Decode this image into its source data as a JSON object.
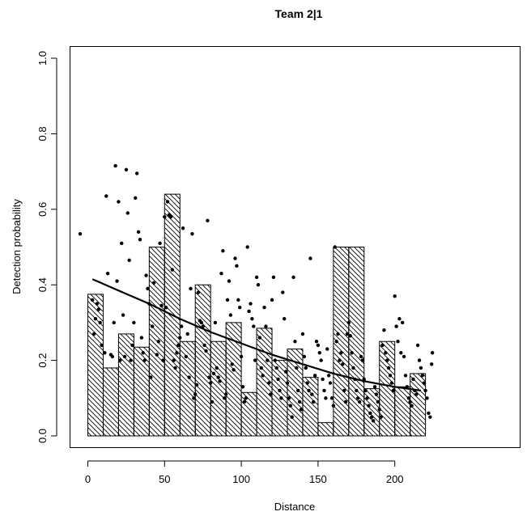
{
  "chart_data": {
    "type": "bar",
    "title": "Team 2|1",
    "xlabel": "Distance",
    "ylabel": "Detection probability",
    "xlim": [
      -5,
      225
    ],
    "ylim": [
      0,
      1.0
    ],
    "x_ticks": [
      0,
      50,
      100,
      150,
      200
    ],
    "y_ticks": [
      0.0,
      0.2,
      0.4,
      0.6,
      0.8,
      1.0
    ],
    "x_tick_labels": [
      "0",
      "50",
      "100",
      "150",
      "200"
    ],
    "y_tick_labels": [
      "0.0",
      "0.2",
      "0.4",
      "0.6",
      "0.8",
      "1.0"
    ],
    "grid": false,
    "bin_width": 10,
    "bins": [
      {
        "start": 0,
        "value": 0.375
      },
      {
        "start": 10,
        "value": 0.18
      },
      {
        "start": 20,
        "value": 0.27
      },
      {
        "start": 30,
        "value": 0.235
      },
      {
        "start": 40,
        "value": 0.5
      },
      {
        "start": 50,
        "value": 0.64
      },
      {
        "start": 60,
        "value": 0.25
      },
      {
        "start": 70,
        "value": 0.4
      },
      {
        "start": 80,
        "value": 0.25
      },
      {
        "start": 90,
        "value": 0.3
      },
      {
        "start": 100,
        "value": 0.115
      },
      {
        "start": 110,
        "value": 0.285
      },
      {
        "start": 120,
        "value": 0.2
      },
      {
        "start": 130,
        "value": 0.23
      },
      {
        "start": 140,
        "value": 0.155
      },
      {
        "start": 150,
        "value": 0.035
      },
      {
        "start": 160,
        "value": 0.5
      },
      {
        "start": 170,
        "value": 0.5
      },
      {
        "start": 180,
        "value": 0.125
      },
      {
        "start": 190,
        "value": 0.25
      },
      {
        "start": 200,
        "value": 0.13
      },
      {
        "start": 210,
        "value": 0.165
      }
    ],
    "fitted_line": {
      "x": [
        3,
        20,
        40,
        60,
        80,
        100,
        120,
        140,
        160,
        180,
        200,
        217
      ],
      "y": [
        0.415,
        0.385,
        0.35,
        0.31,
        0.275,
        0.245,
        0.215,
        0.19,
        0.165,
        0.145,
        0.13,
        0.12
      ]
    },
    "points": [
      [
        -5,
        0.535
      ],
      [
        3,
        0.36
      ],
      [
        4,
        0.27
      ],
      [
        5,
        0.31
      ],
      [
        6,
        0.35
      ],
      [
        7,
        0.335
      ],
      [
        8,
        0.3
      ],
      [
        9,
        0.24
      ],
      [
        11,
        0.22
      ],
      [
        12,
        0.635
      ],
      [
        13,
        0.43
      ],
      [
        15,
        0.215
      ],
      [
        16,
        0.21
      ],
      [
        17,
        0.3
      ],
      [
        18,
        0.715
      ],
      [
        19,
        0.41
      ],
      [
        20,
        0.62
      ],
      [
        21,
        0.2
      ],
      [
        22,
        0.51
      ],
      [
        23,
        0.32
      ],
      [
        24,
        0.21
      ],
      [
        25,
        0.705
      ],
      [
        26,
        0.59
      ],
      [
        27,
        0.465
      ],
      [
        28,
        0.2
      ],
      [
        29,
        0.24
      ],
      [
        30,
        0.3
      ],
      [
        31,
        0.63
      ],
      [
        32,
        0.695
      ],
      [
        33,
        0.54
      ],
      [
        34,
        0.52
      ],
      [
        35,
        0.26
      ],
      [
        36,
        0.22
      ],
      [
        37,
        0.2
      ],
      [
        38,
        0.425
      ],
      [
        39,
        0.39
      ],
      [
        40,
        0.35
      ],
      [
        41,
        0.155
      ],
      [
        42,
        0.29
      ],
      [
        43,
        0.405
      ],
      [
        45,
        0.215
      ],
      [
        46,
        0.25
      ],
      [
        47,
        0.51
      ],
      [
        48,
        0.345
      ],
      [
        49,
        0.2
      ],
      [
        50,
        0.58
      ],
      [
        51,
        0.34
      ],
      [
        52,
        0.62
      ],
      [
        53,
        0.585
      ],
      [
        54,
        0.58
      ],
      [
        55,
        0.44
      ],
      [
        56,
        0.2
      ],
      [
        57,
        0.18
      ],
      [
        58,
        0.22
      ],
      [
        59,
        0.24
      ],
      [
        60,
        0.26
      ],
      [
        61,
        0.29
      ],
      [
        62,
        0.55
      ],
      [
        64,
        0.21
      ],
      [
        65,
        0.27
      ],
      [
        66,
        0.155
      ],
      [
        67,
        0.39
      ],
      [
        68,
        0.535
      ],
      [
        69,
        0.1
      ],
      [
        70,
        0.11
      ],
      [
        71,
        0.135
      ],
      [
        72,
        0.38
      ],
      [
        73,
        0.305
      ],
      [
        74,
        0.3
      ],
      [
        75,
        0.29
      ],
      [
        76,
        0.24
      ],
      [
        77,
        0.225
      ],
      [
        78,
        0.57
      ],
      [
        79,
        0.155
      ],
      [
        80,
        0.14
      ],
      [
        81,
        0.09
      ],
      [
        82,
        0.165
      ],
      [
        83,
        0.3
      ],
      [
        84,
        0.18
      ],
      [
        85,
        0.155
      ],
      [
        86,
        0.145
      ],
      [
        87,
        0.43
      ],
      [
        88,
        0.49
      ],
      [
        89,
        0.1
      ],
      [
        90,
        0.11
      ],
      [
        91,
        0.36
      ],
      [
        92,
        0.41
      ],
      [
        93,
        0.32
      ],
      [
        94,
        0.19
      ],
      [
        95,
        0.175
      ],
      [
        96,
        0.47
      ],
      [
        97,
        0.45
      ],
      [
        98,
        0.36
      ],
      [
        99,
        0.34
      ],
      [
        100,
        0.21
      ],
      [
        101,
        0.13
      ],
      [
        102,
        0.09
      ],
      [
        103,
        0.1
      ],
      [
        104,
        0.5
      ],
      [
        105,
        0.33
      ],
      [
        106,
        0.35
      ],
      [
        107,
        0.31
      ],
      [
        108,
        0.29
      ],
      [
        109,
        0.2
      ],
      [
        110,
        0.42
      ],
      [
        111,
        0.4
      ],
      [
        112,
        0.26
      ],
      [
        113,
        0.18
      ],
      [
        114,
        0.16
      ],
      [
        115,
        0.34
      ],
      [
        116,
        0.29
      ],
      [
        117,
        0.2
      ],
      [
        118,
        0.14
      ],
      [
        119,
        0.11
      ],
      [
        120,
        0.36
      ],
      [
        121,
        0.42
      ],
      [
        122,
        0.2
      ],
      [
        123,
        0.18
      ],
      [
        124,
        0.15
      ],
      [
        125,
        0.12
      ],
      [
        126,
        0.1
      ],
      [
        127,
        0.38
      ],
      [
        128,
        0.31
      ],
      [
        129,
        0.17
      ],
      [
        130,
        0.14
      ],
      [
        131,
        0.1
      ],
      [
        132,
        0.08
      ],
      [
        133,
        0.05
      ],
      [
        134,
        0.42
      ],
      [
        135,
        0.25
      ],
      [
        136,
        0.18
      ],
      [
        137,
        0.12
      ],
      [
        138,
        0.09
      ],
      [
        139,
        0.07
      ],
      [
        140,
        0.27
      ],
      [
        141,
        0.21
      ],
      [
        142,
        0.18
      ],
      [
        143,
        0.14
      ],
      [
        144,
        0.12
      ],
      [
        145,
        0.47
      ],
      [
        146,
        0.11
      ],
      [
        147,
        0.09
      ],
      [
        148,
        0.16
      ],
      [
        149,
        0.25
      ],
      [
        150,
        0.24
      ],
      [
        151,
        0.22
      ],
      [
        152,
        0.2
      ],
      [
        153,
        0.15
      ],
      [
        154,
        0.12
      ],
      [
        155,
        0.1
      ],
      [
        156,
        0.23
      ],
      [
        157,
        0.16
      ],
      [
        158,
        0.14
      ],
      [
        159,
        0.1
      ],
      [
        160,
        0.08
      ],
      [
        161,
        0.5
      ],
      [
        162,
        0.25
      ],
      [
        163,
        0.27
      ],
      [
        164,
        0.2
      ],
      [
        165,
        0.22
      ],
      [
        166,
        0.19
      ],
      [
        167,
        0.12
      ],
      [
        168,
        0.09
      ],
      [
        169,
        0.27
      ],
      [
        170,
        0.3
      ],
      [
        171,
        0.265
      ],
      [
        172,
        0.22
      ],
      [
        173,
        0.18
      ],
      [
        174,
        0.15
      ],
      [
        175,
        0.12
      ],
      [
        176,
        0.1
      ],
      [
        177,
        0.09
      ],
      [
        178,
        0.21
      ],
      [
        179,
        0.2
      ],
      [
        180,
        0.15
      ],
      [
        181,
        0.12
      ],
      [
        182,
        0.1
      ],
      [
        183,
        0.08
      ],
      [
        184,
        0.06
      ],
      [
        185,
        0.05
      ],
      [
        186,
        0.04
      ],
      [
        187,
        0.13
      ],
      [
        188,
        0.11
      ],
      [
        189,
        0.09
      ],
      [
        190,
        0.07
      ],
      [
        191,
        0.05
      ],
      [
        192,
        0.24
      ],
      [
        193,
        0.28
      ],
      [
        194,
        0.22
      ],
      [
        195,
        0.2
      ],
      [
        196,
        0.18
      ],
      [
        197,
        0.16
      ],
      [
        198,
        0.14
      ],
      [
        199,
        0.12
      ],
      [
        200,
        0.37
      ],
      [
        201,
        0.29
      ],
      [
        202,
        0.25
      ],
      [
        203,
        0.31
      ],
      [
        204,
        0.22
      ],
      [
        205,
        0.3
      ],
      [
        206,
        0.21
      ],
      [
        207,
        0.16
      ],
      [
        208,
        0.13
      ],
      [
        209,
        0.1
      ],
      [
        210,
        0.09
      ],
      [
        211,
        0.08
      ],
      [
        212,
        0.15
      ],
      [
        213,
        0.12
      ],
      [
        214,
        0.11
      ],
      [
        215,
        0.24
      ],
      [
        216,
        0.2
      ],
      [
        217,
        0.18
      ],
      [
        218,
        0.16
      ],
      [
        219,
        0.14
      ],
      [
        220,
        0.12
      ],
      [
        221,
        0.1
      ],
      [
        222,
        0.06
      ],
      [
        223,
        0.05
      ],
      [
        224,
        0.19
      ],
      [
        224.5,
        0.22
      ]
    ]
  }
}
